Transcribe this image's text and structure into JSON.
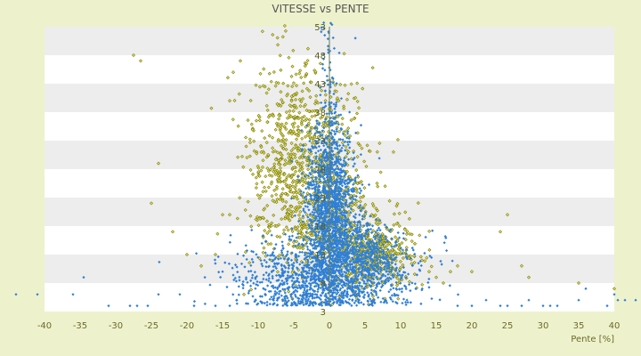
{
  "chart_data": {
    "type": "scatter",
    "title": "VITESSE vs PENTE",
    "xlabel": "Pente [%]",
    "ylabel": "",
    "xlim": [
      -40,
      40
    ],
    "ylim": [
      3,
      53
    ],
    "x_ticks": [
      "-40",
      "-35",
      "-30",
      "-25",
      "-20",
      "-15",
      "-10",
      "-5",
      "0",
      "5",
      "10",
      "15",
      "20",
      "25",
      "30",
      "35",
      "40"
    ],
    "y_ticks": [
      "3",
      "8",
      "13",
      "18",
      "23",
      "28",
      "33",
      "38",
      "43",
      "48",
      "53"
    ],
    "grid": "horizontal bands",
    "legend": "none",
    "series": [
      {
        "color": "#2f7fd6",
        "marker": "diamond",
        "clusters": [
          {
            "x_center": 0.2,
            "x_spread": 1.8,
            "y_center": 21,
            "y_spread": 7,
            "count": 1400
          },
          {
            "x_center": 0.0,
            "x_spread": 0.6,
            "y_center": 40,
            "y_spread": 10,
            "count": 120
          },
          {
            "x_center": 2.5,
            "x_spread": 5.5,
            "y_center": 9,
            "y_spread": 3.5,
            "count": 700
          },
          {
            "x_center": -3.5,
            "x_spread": 5.0,
            "y_center": 9,
            "y_spread": 3.5,
            "count": 600
          },
          {
            "x_center": 5.0,
            "x_spread": 2.5,
            "y_center": 14,
            "y_spread": 2.5,
            "count": 300
          }
        ],
        "points": [
          [
            -44,
            6
          ],
          [
            -41,
            6
          ],
          [
            -36,
            6
          ],
          [
            -34.5,
            9
          ],
          [
            -31,
            4
          ],
          [
            -28,
            4
          ],
          [
            -27,
            4
          ],
          [
            -25.5,
            4
          ],
          [
            -24,
            6
          ],
          [
            -21,
            6
          ],
          [
            -19,
            4
          ],
          [
            -16,
            4
          ],
          [
            -15,
            10
          ],
          [
            -13,
            5
          ],
          [
            18,
            4
          ],
          [
            20,
            4
          ],
          [
            22,
            5
          ],
          [
            24,
            4
          ],
          [
            25,
            4
          ],
          [
            27,
            4
          ],
          [
            28,
            5
          ],
          [
            30,
            4
          ],
          [
            31,
            4
          ],
          [
            32,
            4
          ],
          [
            35,
            5
          ],
          [
            36,
            7
          ],
          [
            39,
            4
          ],
          [
            40,
            6
          ],
          [
            40.5,
            5
          ],
          [
            41.5,
            5
          ],
          [
            43,
            5
          ]
        ]
      },
      {
        "color": "#7a7a10",
        "marker": "diamond-outline",
        "clusters": [
          {
            "x_center": -4.0,
            "x_spread": 4.0,
            "y_center": 28,
            "y_spread": 9,
            "count": 900
          },
          {
            "x_center": 6.5,
            "x_spread": 3.0,
            "y_center": 13,
            "y_spread": 3.0,
            "count": 450
          },
          {
            "x_center": 1.0,
            "x_spread": 3.0,
            "y_center": 18,
            "y_spread": 5,
            "count": 300
          }
        ],
        "points": [
          [
            -27.5,
            48
          ],
          [
            -26.5,
            47
          ],
          [
            -24,
            29
          ],
          [
            -25,
            22
          ],
          [
            -22,
            17
          ],
          [
            -20,
            13
          ],
          [
            -18,
            11
          ],
          [
            -16,
            13
          ],
          [
            -15,
            20
          ],
          [
            -14,
            20
          ],
          [
            -12.5,
            47
          ],
          [
            -13.5,
            45
          ],
          [
            -14,
            40
          ],
          [
            9,
            31
          ],
          [
            13,
            12
          ],
          [
            14,
            10
          ],
          [
            15,
            9
          ],
          [
            16,
            8
          ],
          [
            17,
            10
          ],
          [
            18,
            11
          ],
          [
            20,
            10
          ],
          [
            24,
            17
          ],
          [
            25,
            20
          ],
          [
            27,
            11
          ],
          [
            28,
            9
          ],
          [
            35,
            8
          ],
          [
            40,
            7
          ]
        ]
      }
    ]
  }
}
